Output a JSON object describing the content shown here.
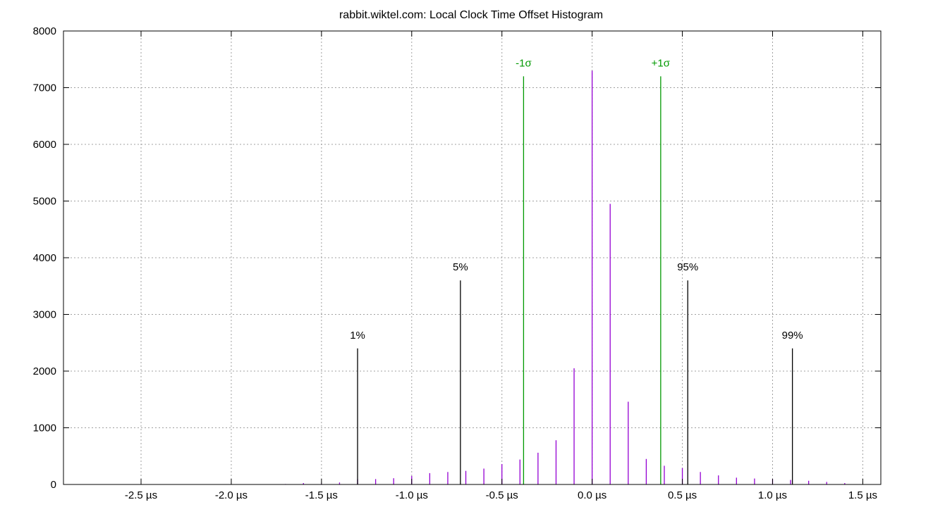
{
  "chart_data": {
    "type": "bar",
    "title": "rabbit.wiktel.com: Local Clock Time Offset Histogram",
    "xlabel": "",
    "ylabel": "",
    "xlim": [
      -2.93,
      1.6
    ],
    "ylim": [
      0,
      8000
    ],
    "grid": true,
    "x_ticks": [
      {
        "value": -2.5,
        "label": "-2.5 µs"
      },
      {
        "value": -2.0,
        "label": "-2.0 µs"
      },
      {
        "value": -1.5,
        "label": "-1.5 µs"
      },
      {
        "value": -1.0,
        "label": "-1.0 µs"
      },
      {
        "value": -0.5,
        "label": "-0.5 µs"
      },
      {
        "value": 0.0,
        "label": "0.0 µs"
      },
      {
        "value": 0.5,
        "label": "0.5 µs"
      },
      {
        "value": 1.0,
        "label": "1.0 µs"
      },
      {
        "value": 1.5,
        "label": "1.5 µs"
      }
    ],
    "y_ticks": [
      {
        "value": 0,
        "label": "0"
      },
      {
        "value": 1000,
        "label": "1000"
      },
      {
        "value": 2000,
        "label": "2000"
      },
      {
        "value": 3000,
        "label": "3000"
      },
      {
        "value": 4000,
        "label": "4000"
      },
      {
        "value": 5000,
        "label": "5000"
      },
      {
        "value": 6000,
        "label": "6000"
      },
      {
        "value": 7000,
        "label": "7000"
      },
      {
        "value": 8000,
        "label": "8000"
      }
    ],
    "histogram": {
      "color": "#9400d3",
      "x": [
        -2.1,
        -2.0,
        -1.9,
        -1.8,
        -1.7,
        -1.6,
        -1.5,
        -1.4,
        -1.3,
        -1.2,
        -1.1,
        -1.0,
        -0.9,
        -0.8,
        -0.7,
        -0.6,
        -0.5,
        -0.4,
        -0.3,
        -0.2,
        -0.1,
        0.0,
        0.1,
        0.2,
        0.3,
        0.4,
        0.5,
        0.6,
        0.7,
        0.8,
        0.9,
        1.0,
        1.1,
        1.2,
        1.3,
        1.4
      ],
      "values": [
        3,
        4,
        5,
        6,
        8,
        25,
        15,
        35,
        95,
        95,
        110,
        150,
        200,
        220,
        240,
        280,
        360,
        440,
        560,
        780,
        2050,
        7300,
        4950,
        1460,
        450,
        330,
        290,
        220,
        160,
        120,
        105,
        95,
        80,
        65,
        45,
        25
      ]
    },
    "markers": [
      {
        "label": "1%",
        "x": -1.3,
        "height": 2400,
        "color": "#000000"
      },
      {
        "label": "5%",
        "x": -0.73,
        "height": 3600,
        "color": "#000000"
      },
      {
        "label": "-1σ",
        "x": -0.38,
        "height": 7200,
        "color": "#009900"
      },
      {
        "label": "+1σ",
        "x": 0.38,
        "height": 7200,
        "color": "#009900"
      },
      {
        "label": "95%",
        "x": 0.53,
        "height": 3600,
        "color": "#000000"
      },
      {
        "label": "99%",
        "x": 1.11,
        "height": 2400,
        "color": "#000000"
      }
    ]
  }
}
